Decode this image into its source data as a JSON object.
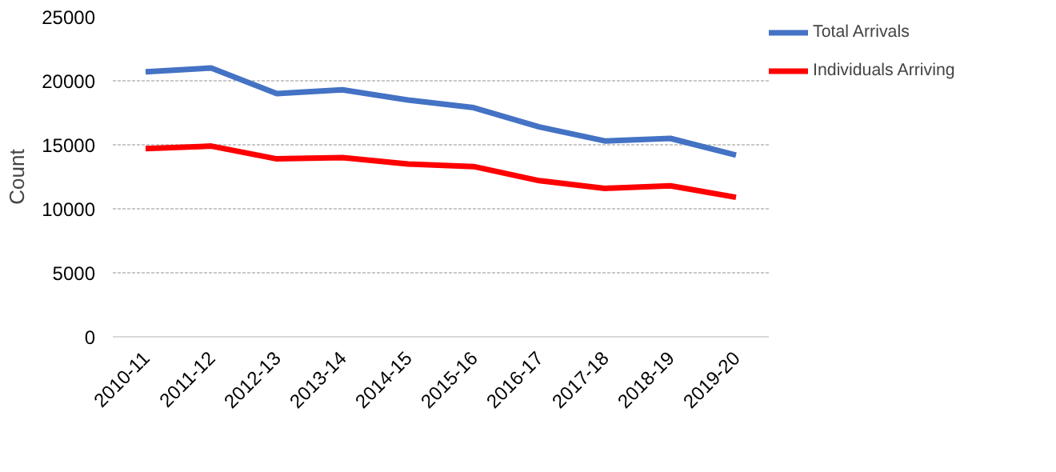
{
  "chart_data": {
    "type": "line",
    "ylabel": "Count",
    "categories": [
      "2010-11",
      "2011-12",
      "2012-13",
      "2013-14",
      "2014-15",
      "2015-16",
      "2016-17",
      "2017-18",
      "2018-19",
      "2019-20"
    ],
    "series": [
      {
        "name": "Total Arrivals",
        "color": "#4472c4",
        "values": [
          20700,
          21000,
          19000,
          19300,
          18500,
          17900,
          16400,
          15300,
          15500,
          14200
        ]
      },
      {
        "name": "Individuals Arriving",
        "color": "#ff0000",
        "values": [
          14700,
          14900,
          13900,
          14000,
          13500,
          13300,
          12200,
          11600,
          11800,
          10900
        ]
      }
    ],
    "ylim": [
      0,
      25000
    ],
    "yticks": [
      0,
      5000,
      10000,
      15000,
      20000,
      25000
    ],
    "grid": "y",
    "legend": "right",
    "marker": "none",
    "line_style": "solid"
  }
}
